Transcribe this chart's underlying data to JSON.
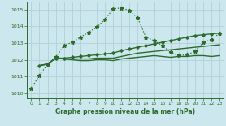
{
  "background_color": "#cce8ee",
  "grid_color": "#b0d0d8",
  "line_color": "#2d6b2d",
  "title": "Graphe pression niveau de la mer (hPa)",
  "xlim": [
    -0.5,
    23.5
  ],
  "ylim": [
    1009.7,
    1015.5
  ],
  "xticks": [
    0,
    1,
    2,
    3,
    4,
    5,
    6,
    7,
    8,
    9,
    10,
    11,
    12,
    13,
    14,
    15,
    16,
    17,
    18,
    19,
    20,
    21,
    22,
    23
  ],
  "yticks": [
    1010,
    1011,
    1012,
    1013,
    1014,
    1015
  ],
  "curve1_x": [
    0,
    1,
    2,
    3,
    4,
    5,
    6,
    7,
    8,
    9,
    10,
    11,
    12,
    13,
    14,
    15,
    16,
    17,
    18,
    19,
    20,
    21,
    22,
    23
  ],
  "curve1_y": [
    1010.3,
    1011.05,
    1011.75,
    1012.15,
    1012.85,
    1013.05,
    1013.35,
    1013.65,
    1013.95,
    1014.4,
    1015.05,
    1015.1,
    1014.95,
    1014.5,
    1013.35,
    1013.15,
    1012.85,
    1012.45,
    1012.25,
    1012.3,
    1012.5,
    1013.05,
    1013.2,
    1013.6
  ],
  "curve2_x": [
    1,
    2,
    3,
    4,
    5,
    6,
    7,
    8,
    9,
    10,
    11,
    12,
    13,
    14,
    15,
    16,
    17,
    18,
    19,
    20,
    21,
    22,
    23
  ],
  "curve2_y": [
    1011.65,
    1011.75,
    1012.1,
    1012.1,
    1012.15,
    1012.2,
    1012.25,
    1012.3,
    1012.35,
    1012.4,
    1012.55,
    1012.65,
    1012.75,
    1012.85,
    1012.95,
    1013.05,
    1013.15,
    1013.25,
    1013.35,
    1013.45,
    1013.5,
    1013.55,
    1013.6
  ],
  "curve3_x": [
    1,
    2,
    3,
    4,
    5,
    6,
    7,
    8,
    9,
    10,
    11,
    12,
    13,
    14,
    15,
    16,
    17,
    18,
    19,
    20,
    21,
    22,
    23
  ],
  "curve3_y": [
    1011.65,
    1011.75,
    1012.1,
    1012.05,
    1012.05,
    1012.05,
    1012.05,
    1012.1,
    1012.1,
    1012.1,
    1012.2,
    1012.3,
    1012.4,
    1012.45,
    1012.5,
    1012.55,
    1012.6,
    1012.65,
    1012.7,
    1012.75,
    1012.8,
    1012.85,
    1012.9
  ],
  "curve4_x": [
    1,
    2,
    3,
    4,
    5,
    6,
    7,
    8,
    9,
    10,
    11,
    12,
    13,
    14,
    15,
    16,
    17,
    18,
    19,
    20,
    21,
    22,
    23
  ],
  "curve4_y": [
    1011.65,
    1011.75,
    1012.1,
    1012.05,
    1012.0,
    1011.95,
    1011.95,
    1012.0,
    1012.0,
    1011.95,
    1012.05,
    1012.1,
    1012.15,
    1012.2,
    1012.25,
    1012.2,
    1012.15,
    1012.2,
    1012.2,
    1012.25,
    1012.25,
    1012.2,
    1012.25
  ]
}
